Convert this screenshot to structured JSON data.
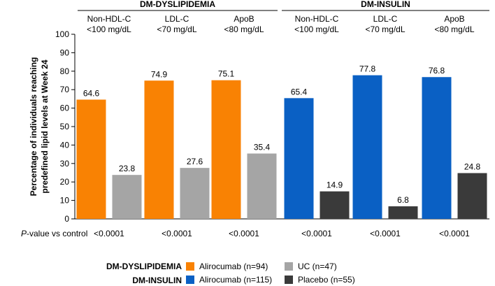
{
  "colors": {
    "alirocumab_dyslipidemia": "#f98203",
    "uc": "#a5a5a5",
    "alirocumab_insulin": "#0a60c4",
    "placebo": "#3a3a3a"
  },
  "chart_data": {
    "type": "bar",
    "title": "",
    "ylabel": "Percentage of individuals reaching predefined lipid levels at Week 24",
    "ylabel_lines": [
      "Percentage of individuals reaching",
      "predefined lipid levels at Week 24"
    ],
    "ylim": [
      0,
      100
    ],
    "yticks": [
      0,
      10,
      20,
      30,
      40,
      50,
      60,
      70,
      80,
      90,
      100
    ],
    "grid": false,
    "groups": [
      {
        "name": "DM-DYSLIPIDEMIA",
        "categories": [
          {
            "line1": "Non-HDL-C",
            "line2": "<100 mg/dL",
            "active": 64.6,
            "control": 23.8,
            "pvalue": "<0.0001"
          },
          {
            "line1": "LDL-C",
            "line2": "<70 mg/dL",
            "active": 74.9,
            "control": 27.6,
            "pvalue": "<0.0001"
          },
          {
            "line1": "ApoB",
            "line2": "<80 mg/dL",
            "active": 75.1,
            "control": 35.4,
            "pvalue": "<0.0001"
          }
        ]
      },
      {
        "name": "DM-INSULIN",
        "categories": [
          {
            "line1": "Non-HDL-C",
            "line2": "<100 mg/dL",
            "active": 65.4,
            "control": 14.9,
            "pvalue": "<0.0001"
          },
          {
            "line1": "LDL-C",
            "line2": "<70 mg/dL",
            "active": 77.8,
            "control": 6.8,
            "pvalue": "<0.0001"
          },
          {
            "line1": "ApoB",
            "line2": "<80 mg/dL",
            "active": 76.8,
            "control": 24.8,
            "pvalue": "<0.0001"
          }
        ]
      }
    ],
    "pvalue_label_italic": "P",
    "pvalue_label_rest": "-value vs control",
    "legend": [
      {
        "group": "DM-DYSLIPIDEMIA",
        "items": [
          {
            "label": "Alirocumab (n=94)",
            "color_key": "alirocumab_dyslipidemia"
          },
          {
            "label": "UC (n=47)",
            "color_key": "uc"
          }
        ]
      },
      {
        "group": "DM-INSULIN",
        "items": [
          {
            "label": "Alirocumab (n=115)",
            "color_key": "alirocumab_insulin"
          },
          {
            "label": "Placebo (n=55)",
            "color_key": "placebo"
          }
        ]
      }
    ]
  }
}
